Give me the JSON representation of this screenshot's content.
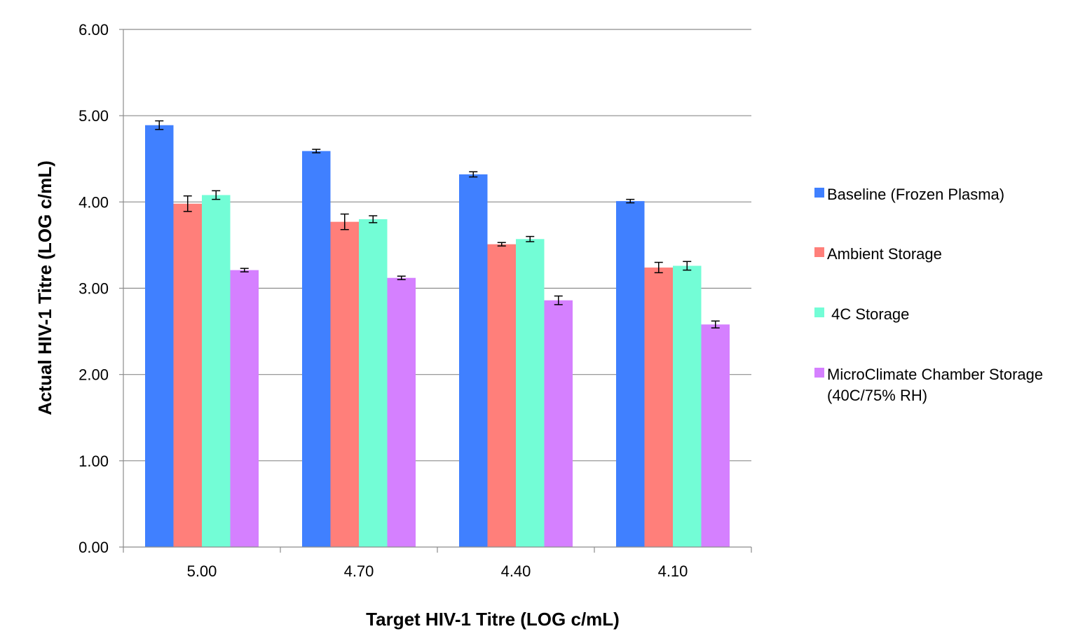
{
  "chart_data": {
    "type": "bar",
    "title": "",
    "xlabel": "Target HIV-1 Titre (LOG c/mL)",
    "ylabel": "Actual HIV-1 Titre (LOG c/mL)",
    "ylim": [
      0,
      6
    ],
    "yticks": [
      "0.00",
      "1.00",
      "2.00",
      "3.00",
      "4.00",
      "5.00",
      "6.00"
    ],
    "categories": [
      "5.00",
      "4.70",
      "4.40",
      "4.10"
    ],
    "grid": "horizontal",
    "legend_position": "right",
    "series": [
      {
        "name": "Baseline (Frozen Plasma)",
        "color": "#4080FF",
        "values": [
          4.89,
          4.59,
          4.32,
          4.01
        ],
        "errors": [
          0.05,
          0.02,
          0.03,
          0.02
        ]
      },
      {
        "name": "Ambient Storage",
        "color": "#FF7F7A",
        "values": [
          3.98,
          3.77,
          3.51,
          3.24
        ],
        "errors": [
          0.09,
          0.09,
          0.02,
          0.06
        ]
      },
      {
        "name": " 4C Storage",
        "color": "#73FDD6",
        "values": [
          4.08,
          3.8,
          3.57,
          3.26
        ],
        "errors": [
          0.05,
          0.04,
          0.03,
          0.05
        ]
      },
      {
        "name": "MicroClimate Chamber Storage (40C/75% RH)",
        "legend_lines": [
          "MicroClimate Chamber Storage",
          "(40C/75% RH)"
        ],
        "color": "#D580FF",
        "values": [
          3.21,
          3.12,
          2.86,
          2.58
        ],
        "errors": [
          0.02,
          0.02,
          0.05,
          0.04
        ]
      }
    ]
  }
}
